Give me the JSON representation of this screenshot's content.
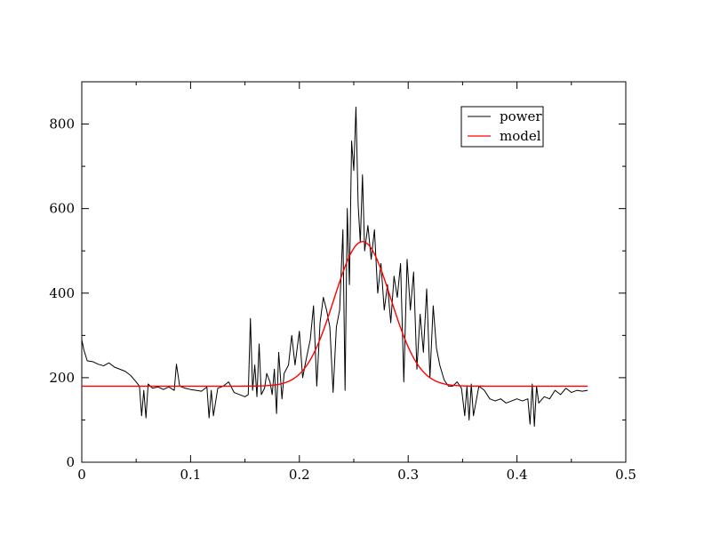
{
  "chart_data": {
    "type": "line",
    "title": "",
    "xlabel": "",
    "ylabel": "",
    "xlim": [
      0,
      0.5
    ],
    "ylim": [
      0,
      900
    ],
    "xticks": [
      0,
      0.1,
      0.2,
      0.3,
      0.4,
      0.5
    ],
    "xtick_labels": [
      "0",
      "0.1",
      "0.2",
      "0.3",
      "0.4",
      "0.5"
    ],
    "yticks": [
      0,
      200,
      400,
      600,
      800
    ],
    "ytick_labels": [
      "0",
      "200",
      "400",
      "600",
      "800"
    ],
    "grid": false,
    "legend_position": "top-right",
    "series": [
      {
        "name": "power",
        "color": "#000000",
        "style": "noisy-line",
        "x": [
          0.0,
          0.002,
          0.005,
          0.01,
          0.015,
          0.02,
          0.025,
          0.03,
          0.035,
          0.04,
          0.045,
          0.05,
          0.053,
          0.055,
          0.057,
          0.059,
          0.061,
          0.065,
          0.07,
          0.075,
          0.08,
          0.085,
          0.087,
          0.09,
          0.095,
          0.1,
          0.105,
          0.11,
          0.115,
          0.117,
          0.119,
          0.121,
          0.125,
          0.13,
          0.135,
          0.14,
          0.145,
          0.15,
          0.153,
          0.155,
          0.157,
          0.159,
          0.161,
          0.163,
          0.165,
          0.168,
          0.17,
          0.173,
          0.175,
          0.177,
          0.179,
          0.181,
          0.184,
          0.186,
          0.19,
          0.193,
          0.196,
          0.2,
          0.203,
          0.206,
          0.21,
          0.213,
          0.216,
          0.219,
          0.222,
          0.225,
          0.228,
          0.231,
          0.234,
          0.237,
          0.24,
          0.242,
          0.244,
          0.246,
          0.248,
          0.25,
          0.252,
          0.254,
          0.256,
          0.258,
          0.26,
          0.263,
          0.266,
          0.269,
          0.272,
          0.275,
          0.278,
          0.281,
          0.284,
          0.287,
          0.29,
          0.293,
          0.296,
          0.299,
          0.302,
          0.305,
          0.308,
          0.311,
          0.314,
          0.317,
          0.32,
          0.323,
          0.326,
          0.329,
          0.333,
          0.337,
          0.341,
          0.345,
          0.349,
          0.352,
          0.354,
          0.356,
          0.358,
          0.36,
          0.365,
          0.37,
          0.375,
          0.38,
          0.385,
          0.39,
          0.395,
          0.4,
          0.405,
          0.41,
          0.412,
          0.414,
          0.416,
          0.418,
          0.42,
          0.425,
          0.43,
          0.435,
          0.44,
          0.445,
          0.45,
          0.455,
          0.46,
          0.465
        ],
        "y": [
          290,
          265,
          240,
          238,
          232,
          228,
          235,
          225,
          220,
          215,
          205,
          190,
          180,
          110,
          170,
          105,
          185,
          175,
          178,
          172,
          178,
          170,
          232,
          180,
          175,
          172,
          170,
          168,
          178,
          105,
          170,
          110,
          175,
          180,
          190,
          165,
          160,
          155,
          160,
          340,
          170,
          230,
          155,
          280,
          160,
          175,
          210,
          190,
          160,
          220,
          115,
          260,
          150,
          210,
          230,
          300,
          230,
          310,
          200,
          240,
          290,
          370,
          180,
          330,
          390,
          360,
          320,
          165,
          320,
          360,
          550,
          170,
          600,
          420,
          760,
          690,
          840,
          610,
          520,
          680,
          500,
          560,
          480,
          550,
          400,
          470,
          360,
          420,
          330,
          440,
          390,
          470,
          190,
          480,
          360,
          450,
          220,
          350,
          260,
          410,
          200,
          370,
          270,
          230,
          195,
          180,
          180,
          190,
          175,
          110,
          180,
          100,
          185,
          110,
          180,
          170,
          150,
          145,
          150,
          140,
          145,
          150,
          145,
          150,
          90,
          185,
          85,
          180,
          140,
          155,
          150,
          170,
          160,
          175,
          165,
          170,
          168,
          170
        ]
      },
      {
        "name": "model",
        "color": "#ff0000",
        "style": "smooth-line",
        "baseline": 180,
        "peak_x": 0.258,
        "peak_y": 522,
        "sigma": 0.026,
        "x_range": [
          0,
          0.465
        ]
      }
    ]
  }
}
